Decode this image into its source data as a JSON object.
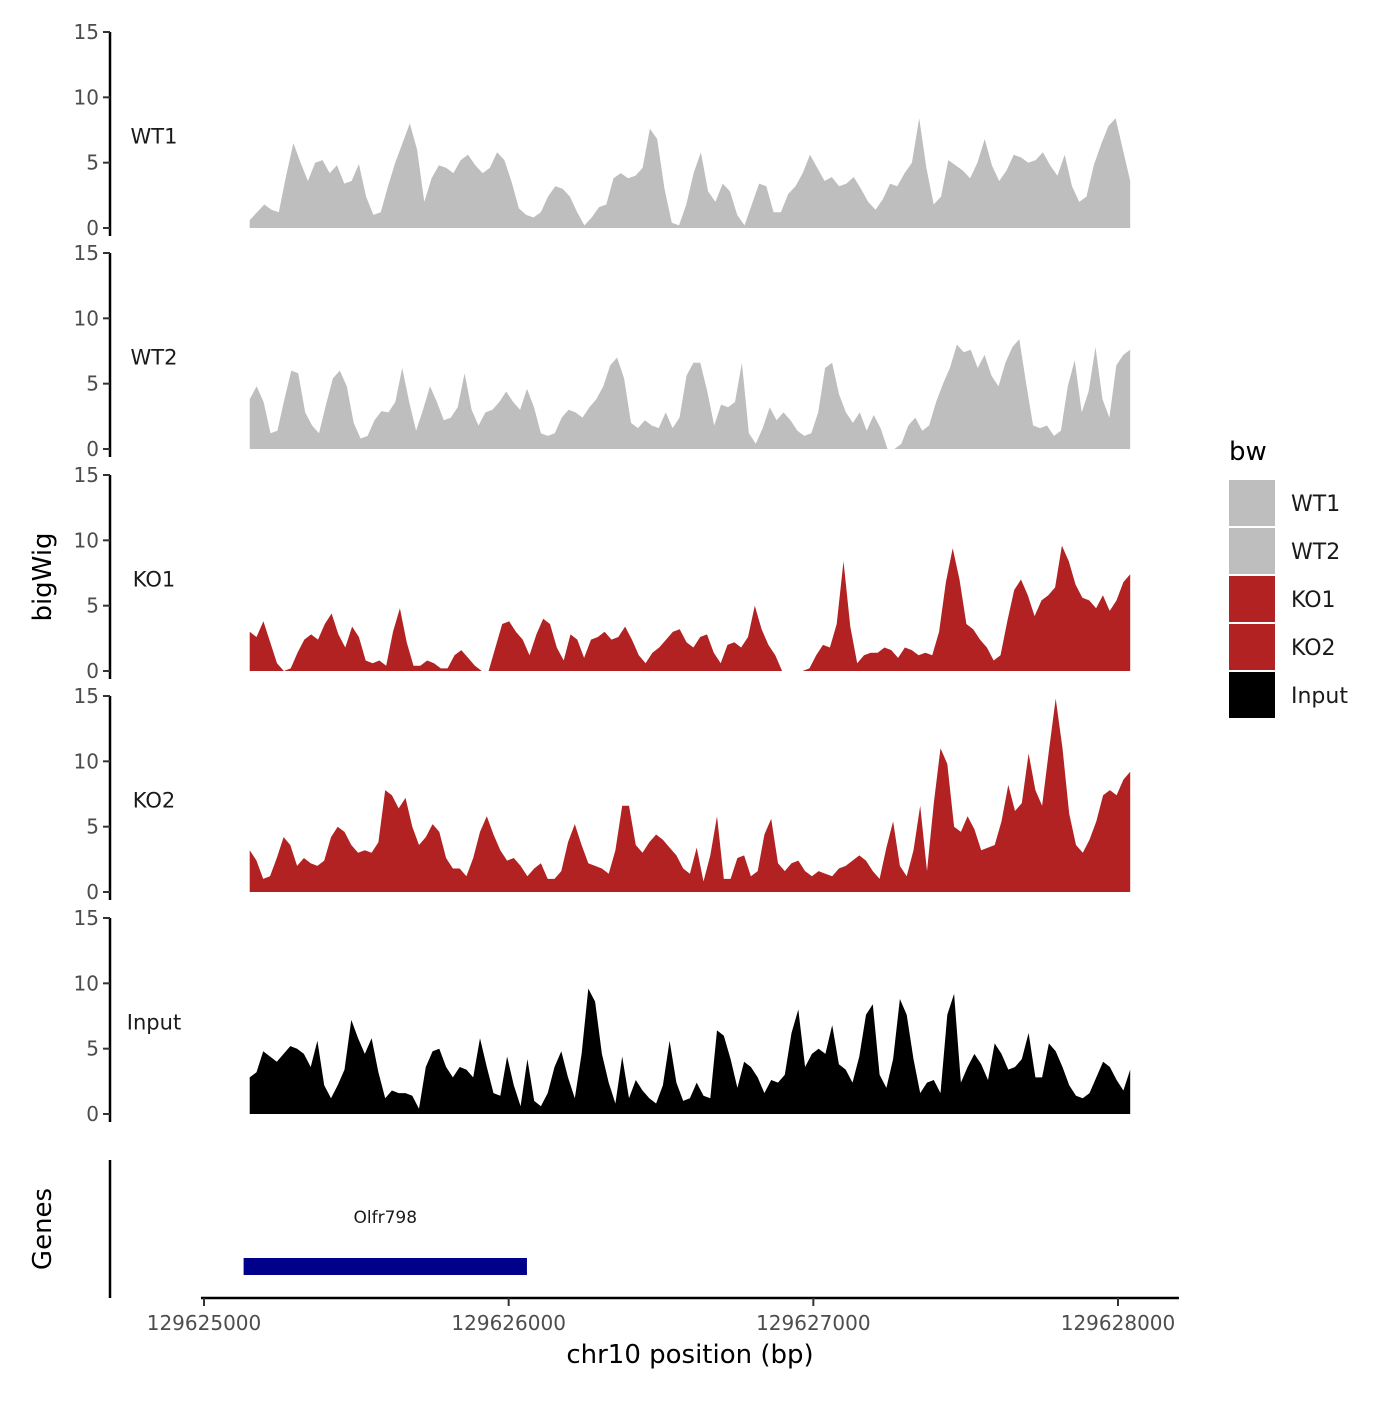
{
  "chart_data": {
    "type": "area",
    "title": "",
    "xlabel": "chr10 position (bp)",
    "ylabel": "bigWig",
    "genes_label": "Genes",
    "xlim": [
      129624990,
      129628200
    ],
    "x_ticks": [
      129625000,
      129626000,
      129627000,
      129628000
    ],
    "x_tick_labels": [
      "129625000",
      "129626000",
      "129627000",
      "129628000"
    ],
    "ylim": [
      0,
      15
    ],
    "y_ticks": [
      0,
      5,
      10,
      15
    ],
    "y_tick_labels": [
      "0",
      "5",
      "10",
      "15"
    ],
    "x_start": 129625150,
    "x_end": 129628040,
    "legend": {
      "title": "bw",
      "position": "right",
      "entries": [
        {
          "label": "WT1",
          "color": "#bebebe"
        },
        {
          "label": "WT2",
          "color": "#bebebe"
        },
        {
          "label": "KO1",
          "color": "#b22222"
        },
        {
          "label": "KO2",
          "color": "#b22222"
        },
        {
          "label": "Input",
          "color": "#000000"
        }
      ]
    },
    "series": [
      {
        "name": "WT1",
        "color": "#bebebe",
        "values": [
          0.6,
          1.2,
          1.8,
          1.4,
          1.2,
          4.0,
          6.5,
          5.0,
          3.6,
          5.0,
          5.2,
          4.2,
          4.8,
          3.4,
          3.6,
          4.9,
          2.4,
          1.0,
          1.2,
          3.2,
          5.0,
          6.5,
          8.0,
          6.0,
          2.0,
          3.8,
          4.8,
          4.6,
          4.2,
          5.2,
          5.6,
          4.8,
          4.2,
          4.6,
          5.8,
          5.2,
          3.5,
          1.5,
          1.0,
          0.8,
          1.2,
          2.4,
          3.2,
          3.0,
          2.4,
          1.2,
          0.2,
          0.8,
          1.6,
          1.8,
          3.8,
          4.2,
          3.8,
          4.0,
          4.6,
          7.6,
          6.8,
          3.0,
          0.4,
          0.2,
          1.8,
          4.2,
          5.8,
          2.8,
          2.0,
          3.4,
          2.8,
          1.0,
          0.2,
          1.8,
          3.4,
          3.2,
          1.2,
          1.2,
          2.6,
          3.2,
          4.2,
          5.6,
          4.6,
          3.6,
          3.9,
          3.2,
          3.4,
          3.9,
          3.0,
          2.0,
          1.4,
          2.2,
          3.4,
          3.2,
          4.2,
          5.0,
          8.4,
          4.6,
          1.8,
          2.4,
          5.2,
          4.8,
          4.4,
          3.8,
          5.0,
          6.8,
          4.8,
          3.6,
          4.4,
          5.6,
          5.4,
          5.0,
          5.2,
          5.8,
          4.8,
          4.0,
          5.6,
          3.2,
          2.0,
          2.4,
          4.8,
          6.4,
          7.8,
          8.4,
          6.0,
          3.6
        ]
      },
      {
        "name": "WT2",
        "color": "#bebebe",
        "values": [
          3.8,
          4.8,
          3.6,
          1.2,
          1.4,
          3.8,
          6.0,
          5.8,
          2.8,
          1.8,
          1.2,
          3.4,
          5.4,
          6.0,
          4.8,
          2.0,
          0.8,
          1.0,
          2.2,
          2.9,
          2.8,
          3.6,
          6.2,
          3.6,
          1.4,
          3.0,
          4.8,
          3.6,
          2.2,
          2.4,
          3.2,
          5.8,
          3.0,
          1.8,
          2.8,
          3.0,
          3.6,
          4.4,
          3.6,
          3.0,
          4.6,
          3.2,
          1.2,
          1.0,
          1.2,
          2.4,
          3.0,
          2.8,
          2.4,
          3.2,
          3.8,
          4.8,
          6.4,
          7.0,
          5.4,
          2.0,
          1.6,
          2.2,
          1.8,
          1.6,
          2.8,
          1.6,
          2.4,
          5.6,
          6.6,
          6.6,
          4.4,
          1.8,
          3.4,
          3.2,
          3.6,
          6.6,
          1.2,
          0.4,
          1.6,
          3.2,
          2.2,
          2.8,
          2.2,
          1.4,
          1.0,
          1.2,
          2.8,
          6.2,
          6.6,
          4.2,
          2.8,
          2.0,
          2.8,
          1.4,
          2.6,
          1.6,
          0.0,
          0.0,
          0.4,
          1.8,
          2.4,
          1.4,
          1.8,
          3.6,
          5.0,
          6.2,
          8.0,
          7.4,
          7.6,
          6.2,
          7.2,
          5.6,
          4.8,
          6.6,
          7.8,
          8.4,
          5.0,
          1.8,
          1.6,
          1.8,
          1.0,
          1.4,
          4.8,
          6.8,
          2.8,
          4.4,
          7.8,
          3.8,
          2.4,
          6.4,
          7.2,
          7.6
        ]
      },
      {
        "name": "KO1",
        "color": "#b22222",
        "values": [
          3.0,
          2.6,
          3.8,
          2.2,
          0.6,
          0.0,
          0.2,
          1.4,
          2.4,
          2.8,
          2.4,
          3.6,
          4.4,
          2.8,
          1.8,
          3.4,
          2.6,
          0.8,
          0.6,
          0.8,
          0.4,
          3.0,
          4.8,
          2.2,
          0.4,
          0.4,
          0.8,
          0.6,
          0.2,
          0.2,
          1.2,
          1.6,
          1.0,
          0.4,
          0.0,
          0.0,
          1.8,
          3.6,
          3.8,
          3.0,
          2.4,
          1.2,
          2.8,
          4.0,
          3.6,
          1.8,
          0.8,
          2.8,
          2.4,
          1.0,
          2.4,
          2.6,
          3.0,
          2.4,
          2.6,
          3.4,
          2.4,
          1.2,
          0.6,
          1.4,
          1.8,
          2.4,
          3.0,
          3.2,
          2.2,
          1.8,
          2.6,
          2.8,
          1.4,
          0.6,
          2.0,
          2.2,
          1.8,
          2.6,
          5.0,
          3.2,
          2.0,
          1.2,
          0.0,
          0.0,
          0.0,
          0.0,
          0.2,
          1.2,
          2.0,
          1.8,
          3.6,
          8.4,
          3.4,
          0.6,
          1.2,
          1.4,
          1.4,
          1.8,
          1.6,
          1.0,
          1.8,
          1.6,
          1.2,
          1.4,
          1.2,
          3.0,
          6.8,
          9.4,
          7.0,
          3.6,
          3.2,
          2.4,
          1.8,
          0.8,
          1.2,
          3.8,
          6.2,
          7.0,
          5.8,
          4.2,
          5.4,
          5.8,
          6.4,
          9.6,
          8.4,
          6.6,
          5.6,
          5.4,
          4.8,
          5.8,
          4.6,
          5.4,
          6.8,
          7.4
        ]
      },
      {
        "name": "KO2",
        "color": "#b22222",
        "values": [
          3.2,
          2.4,
          1.0,
          1.2,
          2.6,
          4.2,
          3.6,
          2.0,
          2.6,
          2.2,
          2.0,
          2.4,
          4.2,
          5.0,
          4.6,
          3.6,
          3.0,
          3.2,
          3.0,
          3.8,
          7.8,
          7.4,
          6.4,
          7.2,
          5.0,
          3.6,
          4.2,
          5.2,
          4.6,
          2.6,
          1.8,
          1.8,
          1.2,
          2.6,
          4.6,
          5.8,
          4.4,
          3.2,
          2.4,
          2.6,
          2.0,
          1.2,
          1.8,
          2.2,
          1.0,
          1.0,
          1.6,
          3.8,
          5.2,
          3.6,
          2.2,
          2.0,
          1.8,
          1.4,
          3.2,
          6.6,
          6.6,
          3.6,
          3.0,
          3.8,
          4.4,
          4.0,
          3.4,
          2.8,
          1.8,
          1.4,
          3.4,
          0.8,
          2.8,
          5.8,
          1.0,
          1.0,
          2.6,
          2.8,
          1.2,
          1.6,
          4.4,
          5.6,
          2.2,
          1.6,
          2.2,
          2.4,
          1.6,
          1.2,
          1.6,
          1.4,
          1.2,
          1.8,
          2.0,
          2.4,
          2.8,
          2.4,
          1.6,
          1.0,
          3.4,
          5.4,
          2.0,
          1.2,
          3.2,
          6.6,
          1.6,
          6.8,
          11.0,
          9.8,
          5.0,
          4.6,
          5.8,
          4.8,
          3.2,
          3.4,
          3.6,
          5.4,
          8.2,
          6.2,
          6.8,
          10.6,
          7.8,
          6.6,
          10.8,
          14.8,
          11.0,
          6.0,
          3.6,
          3.0,
          4.0,
          5.4,
          7.4,
          7.8,
          7.4,
          8.6,
          9.2
        ]
      },
      {
        "name": "Input",
        "color": "#000000",
        "values": [
          2.8,
          3.2,
          4.8,
          4.4,
          4.0,
          4.6,
          5.2,
          5.0,
          4.6,
          3.6,
          5.6,
          2.2,
          1.2,
          2.2,
          3.4,
          7.2,
          5.8,
          4.6,
          5.8,
          3.2,
          1.2,
          1.8,
          1.6,
          1.6,
          1.4,
          0.4,
          3.6,
          4.8,
          5.0,
          3.6,
          2.8,
          3.6,
          3.4,
          2.8,
          5.8,
          3.6,
          1.6,
          1.4,
          4.4,
          2.2,
          0.6,
          4.2,
          1.0,
          0.6,
          1.6,
          3.6,
          4.8,
          2.8,
          1.2,
          4.6,
          9.6,
          8.6,
          4.6,
          2.4,
          0.8,
          4.4,
          1.2,
          2.6,
          1.8,
          1.2,
          0.8,
          2.2,
          5.6,
          2.4,
          1.0,
          1.2,
          2.4,
          1.4,
          1.2,
          6.4,
          6.0,
          4.2,
          2.0,
          4.0,
          3.6,
          2.8,
          1.6,
          2.6,
          2.4,
          3.0,
          6.2,
          8.0,
          3.6,
          4.6,
          5.0,
          4.6,
          6.8,
          3.8,
          3.4,
          2.4,
          4.4,
          7.6,
          8.4,
          3.0,
          2.0,
          4.2,
          8.8,
          7.6,
          4.2,
          1.6,
          2.4,
          2.6,
          1.6,
          7.6,
          9.2,
          2.4,
          3.6,
          4.6,
          3.8,
          2.6,
          5.4,
          4.6,
          3.4,
          3.6,
          4.2,
          6.2,
          2.8,
          2.8,
          5.4,
          4.8,
          3.6,
          2.2,
          1.4,
          1.2,
          1.6,
          2.8,
          4.0,
          3.6,
          2.6,
          1.8,
          3.4
        ]
      }
    ],
    "genes": [
      {
        "name": "Olfr798",
        "start": 129625130,
        "end": 129626060,
        "color": "#00008b"
      }
    ]
  }
}
